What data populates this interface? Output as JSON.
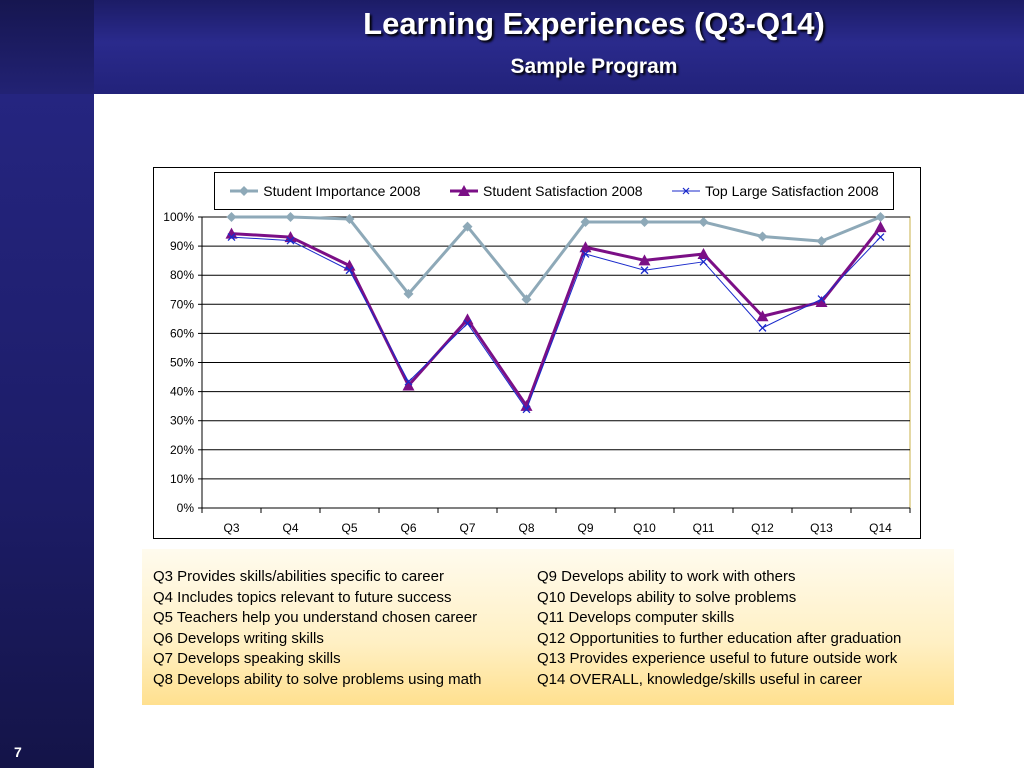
{
  "slide": {
    "title": "Learning Experiences (Q3-Q14)",
    "subtitle": "Sample Program",
    "page_number": "7"
  },
  "colors": {
    "importance": "#8ea9b8",
    "satisfaction": "#7b0f86",
    "top_large": "#1a2acb",
    "chart_border": "#c8b04a"
  },
  "chart_data": {
    "type": "line",
    "categories": [
      "Q3",
      "Q4",
      "Q5",
      "Q6",
      "Q7",
      "Q8",
      "Q9",
      "Q10",
      "Q11",
      "Q12",
      "Q13",
      "Q14"
    ],
    "series": [
      {
        "name": "Student Importance 2008",
        "marker": "diamond",
        "values": [
          100,
          100,
          99.3,
          73.6,
          96.7,
          71.7,
          98.3,
          98.3,
          98.3,
          93.3,
          91.7,
          100
        ]
      },
      {
        "name": "Student Satisfaction 2008",
        "marker": "triangle",
        "values": [
          94.3,
          93.1,
          83.3,
          42.1,
          64.8,
          35.1,
          89.6,
          85.1,
          87.3,
          65.9,
          70.8,
          96.5
        ]
      },
      {
        "name": "Top Large Satisfaction 2008",
        "marker": "x",
        "values": [
          93.1,
          91.9,
          81.7,
          43.4,
          63.4,
          33.9,
          87.3,
          81.7,
          84.6,
          61.9,
          71.8,
          93.1
        ]
      }
    ],
    "y_ticks": [
      "0%",
      "10%",
      "20%",
      "30%",
      "40%",
      "50%",
      "60%",
      "70%",
      "80%",
      "90%",
      "100%"
    ],
    "ylim": [
      0,
      100
    ],
    "grid": true,
    "legend_position": "top"
  },
  "key": {
    "left": [
      "Q3 Provides skills/abilities specific to career",
      "Q4 Includes topics relevant to future success",
      "Q5 Teachers help you understand chosen career",
      "Q6 Develops writing skills",
      "Q7 Develops speaking skills",
      "Q8 Develops ability to solve problems using math"
    ],
    "right": [
      "Q9 Develops ability to work with others",
      "Q10 Develops ability to solve problems",
      "Q11 Develops computer skills",
      "Q12 Opportunities to further education after graduation",
      "Q13 Provides experience useful to future outside work",
      "Q14 OVERALL, knowledge/skills useful in career"
    ]
  }
}
